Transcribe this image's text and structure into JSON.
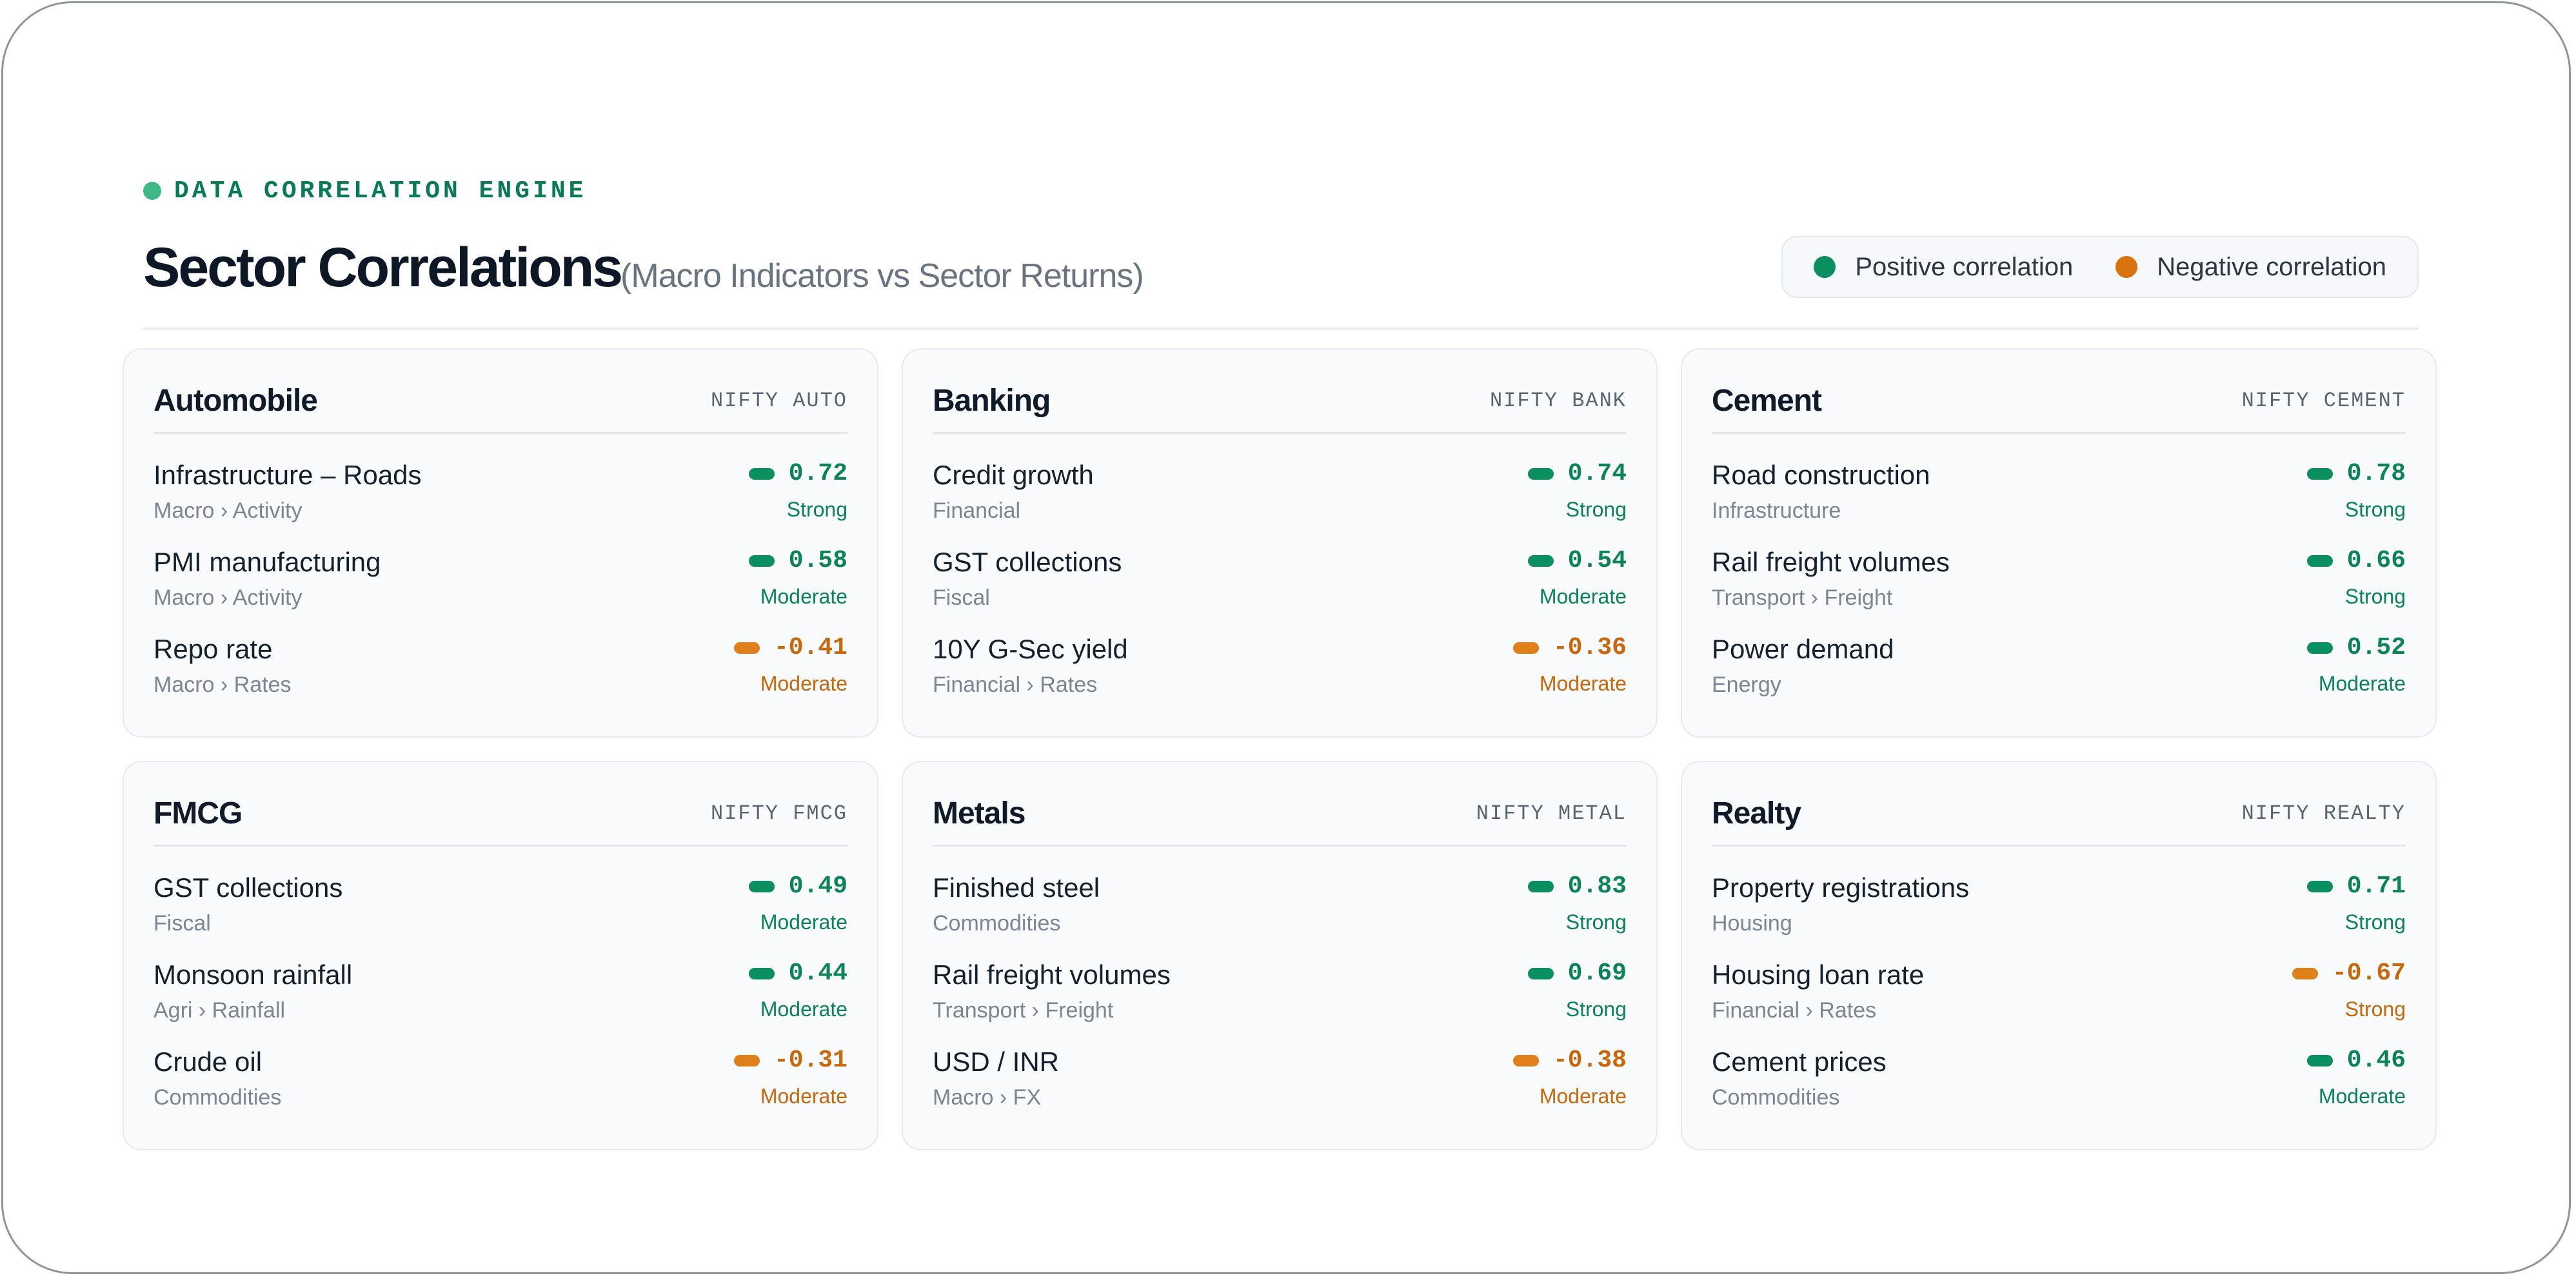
{
  "header": {
    "eyebrow": "DATA CORRELATION ENGINE",
    "title": "Sector Correlations",
    "subtitle": "(Macro Indicators vs Sector Returns)"
  },
  "legend": {
    "positive": "Positive correlation",
    "negative": "Negative correlation"
  },
  "colors": {
    "positive": "#0a8f61",
    "negative": "#d9730d",
    "accent": "#087a58"
  },
  "sectors": [
    {
      "name": "Automobile",
      "index": "NIFTY AUTO",
      "rows": [
        {
          "indicator": "Infrastructure – Roads",
          "category": "Macro › Activity",
          "value": "0.72",
          "strength": "Strong",
          "polarity": "positive"
        },
        {
          "indicator": "PMI manufacturing",
          "category": "Macro › Activity",
          "value": "0.58",
          "strength": "Moderate",
          "polarity": "positive"
        },
        {
          "indicator": "Repo rate",
          "category": "Macro › Rates",
          "value": "-0.41",
          "strength": "Moderate",
          "polarity": "negative"
        }
      ]
    },
    {
      "name": "Banking",
      "index": "NIFTY BANK",
      "rows": [
        {
          "indicator": "Credit growth",
          "category": "Financial",
          "value": "0.74",
          "strength": "Strong",
          "polarity": "positive"
        },
        {
          "indicator": "GST collections",
          "category": "Fiscal",
          "value": "0.54",
          "strength": "Moderate",
          "polarity": "positive"
        },
        {
          "indicator": "10Y G-Sec yield",
          "category": "Financial › Rates",
          "value": "-0.36",
          "strength": "Moderate",
          "polarity": "negative"
        }
      ]
    },
    {
      "name": "Cement",
      "index": "NIFTY CEMENT",
      "rows": [
        {
          "indicator": "Road construction",
          "category": "Infrastructure",
          "value": "0.78",
          "strength": "Strong",
          "polarity": "positive"
        },
        {
          "indicator": "Rail freight volumes",
          "category": "Transport › Freight",
          "value": "0.66",
          "strength": "Strong",
          "polarity": "positive"
        },
        {
          "indicator": "Power demand",
          "category": "Energy",
          "value": "0.52",
          "strength": "Moderate",
          "polarity": "positive"
        }
      ]
    },
    {
      "name": "FMCG",
      "index": "NIFTY FMCG",
      "rows": [
        {
          "indicator": "GST collections",
          "category": "Fiscal",
          "value": "0.49",
          "strength": "Moderate",
          "polarity": "positive"
        },
        {
          "indicator": "Monsoon rainfall",
          "category": "Agri › Rainfall",
          "value": "0.44",
          "strength": "Moderate",
          "polarity": "positive"
        },
        {
          "indicator": "Crude oil",
          "category": "Commodities",
          "value": "-0.31",
          "strength": "Moderate",
          "polarity": "negative"
        }
      ]
    },
    {
      "name": "Metals",
      "index": "NIFTY METAL",
      "rows": [
        {
          "indicator": "Finished steel",
          "category": "Commodities",
          "value": "0.83",
          "strength": "Strong",
          "polarity": "positive"
        },
        {
          "indicator": "Rail freight volumes",
          "category": "Transport › Freight",
          "value": "0.69",
          "strength": "Strong",
          "polarity": "positive"
        },
        {
          "indicator": "USD / INR",
          "category": "Macro › FX",
          "value": "-0.38",
          "strength": "Moderate",
          "polarity": "negative"
        }
      ]
    },
    {
      "name": "Realty",
      "index": "NIFTY REALTY",
      "rows": [
        {
          "indicator": "Property registrations",
          "category": "Housing",
          "value": "0.71",
          "strength": "Strong",
          "polarity": "positive"
        },
        {
          "indicator": "Housing loan rate",
          "category": "Financial › Rates",
          "value": "-0.67",
          "strength": "Strong",
          "polarity": "negative"
        },
        {
          "indicator": "Cement prices",
          "category": "Commodities",
          "value": "0.46",
          "strength": "Moderate",
          "polarity": "positive"
        }
      ]
    }
  ]
}
